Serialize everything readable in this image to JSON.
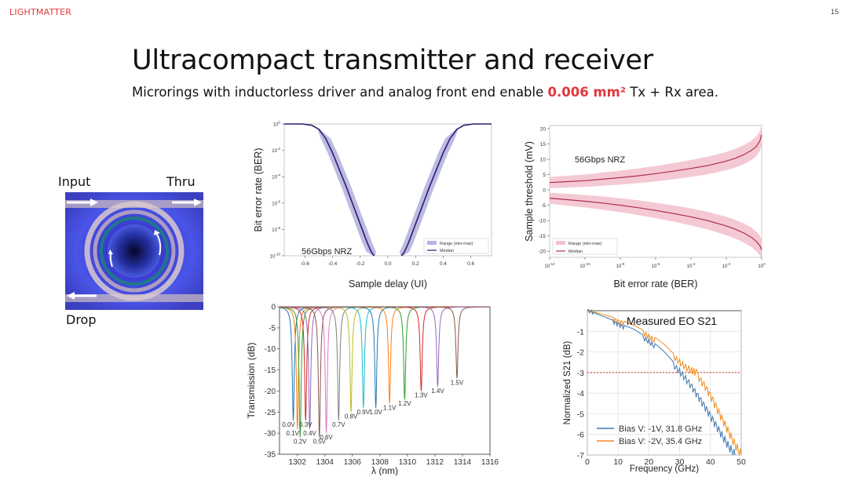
{
  "header": {
    "logo_text": "LIGHTMATTER",
    "page_number": "15"
  },
  "title": "Ultracompact transmitter and receiver",
  "subtitle": {
    "before": "Microrings with inductorless driver and analog front end enable ",
    "highlight": "0.006 mm²",
    "after": " Tx + Rx area."
  },
  "microring": {
    "input_label": "Input",
    "thru_label": "Thru",
    "drop_label": "Drop"
  },
  "colors": {
    "accent": "#e2363c",
    "ber_fill": "#b7b2e0",
    "ber_line": "#23236e",
    "thr_fill": "#f3c3cf",
    "thr_line": "#b03050",
    "eo_orange": "#f08a1c",
    "eo_blue": "#3d77b0"
  },
  "chart_data": [
    {
      "id": "ber_bathtub",
      "type": "line",
      "xlabel": "Sample delay (UI)",
      "ylabel": "Bit error rate (BER)",
      "x_ticks": [
        "-0.6",
        "-0.4",
        "-0.2",
        "0.0",
        "0.2",
        "0.4",
        "0.6"
      ],
      "y_ticks": [
        "10^0",
        "10^-2",
        "10^-4",
        "10^-6",
        "10^-8",
        "10^-10"
      ],
      "xlim": [
        -0.75,
        0.75
      ],
      "ylim_log10": [
        -10,
        0
      ],
      "annotation": "56Gbps NRZ",
      "legend": [
        "Range (min-max)",
        "Median"
      ],
      "legend_position": "bottom-right",
      "median": {
        "x": [
          -0.75,
          -0.62,
          -0.55,
          -0.5,
          -0.45,
          -0.4,
          -0.35,
          -0.3,
          -0.25,
          -0.2,
          -0.15,
          -0.12,
          -0.1,
          0.1,
          0.12,
          0.15,
          0.2,
          0.25,
          0.3,
          0.35,
          0.4,
          0.45,
          0.5,
          0.55,
          0.62,
          0.75
        ],
        "log10_ber": [
          0,
          0,
          -0.1,
          -0.4,
          -1.1,
          -2.2,
          -3.5,
          -4.8,
          -6.2,
          -7.6,
          -9.0,
          -9.7,
          -10,
          -10,
          -9.7,
          -9.0,
          -7.6,
          -6.2,
          -4.8,
          -3.5,
          -2.2,
          -1.1,
          -0.4,
          -0.1,
          0,
          0
        ]
      }
    },
    {
      "id": "threshold",
      "type": "line",
      "xlabel": "Bit error rate (BER)",
      "ylabel": "Sample threshold (mV)",
      "x_ticks": [
        "10^-12",
        "10^-10",
        "10^-8",
        "10^-6",
        "10^-4",
        "10^-2",
        "10^0"
      ],
      "y_ticks": [
        "20",
        "15",
        "10",
        "5",
        "0",
        "-5",
        "-10",
        "-15",
        "-20"
      ],
      "ylim": [
        -22,
        21
      ],
      "annotation": "56Gbps NRZ",
      "legend": [
        "Range (min-max)",
        "Median"
      ],
      "legend_position": "bottom-left",
      "upper_median": {
        "log10_ber": [
          -12,
          -11,
          -10,
          -9,
          -8,
          -7,
          -6,
          -5,
          -4,
          -3,
          -2,
          -1.5,
          -1,
          -0.6,
          -0.3,
          -0.1,
          0
        ],
        "mV": [
          2.4,
          2.7,
          3.0,
          3.5,
          4.0,
          4.6,
          5.3,
          6.1,
          7.0,
          8.0,
          9.4,
          10.3,
          11.5,
          12.8,
          14.2,
          16.0,
          18.0
        ]
      },
      "lower_median": {
        "log10_ber": [
          -12,
          -11,
          -10,
          -9,
          -8,
          -7,
          -6,
          -5,
          -4,
          -3,
          -2,
          -1.5,
          -1,
          -0.6,
          -0.3,
          -0.1,
          0
        ],
        "mV": [
          -2.7,
          -3.2,
          -3.7,
          -4.3,
          -5.0,
          -5.8,
          -6.7,
          -7.7,
          -8.8,
          -10.1,
          -11.8,
          -12.8,
          -14.1,
          -15.4,
          -16.8,
          -18.2,
          -19.5
        ]
      }
    },
    {
      "id": "transmission",
      "type": "line",
      "xlabel": "λ (nm)",
      "ylabel": "Transmission (dB)",
      "x_ticks": [
        "1302",
        "1304",
        "1306",
        "1308",
        "1310",
        "1312",
        "1314",
        "1316"
      ],
      "y_ticks": [
        "0",
        "-5",
        "-10",
        "-15",
        "-20",
        "-25",
        "-30",
        "-35"
      ],
      "xlim": [
        1300.7,
        1316
      ],
      "ylim": [
        -35,
        0
      ],
      "series": [
        {
          "name": "0.0V",
          "center": 1301.7,
          "depth": -27,
          "color": "#1f77b4"
        },
        {
          "name": "0.1V",
          "center": 1302.0,
          "depth": -29,
          "color": "#ff7f0e"
        },
        {
          "name": "0.2V",
          "center": 1302.2,
          "depth": -31,
          "color": "#2ca02c"
        },
        {
          "name": "0.3V",
          "center": 1302.6,
          "depth": -27,
          "color": "#d62728"
        },
        {
          "name": "0.4V",
          "center": 1302.9,
          "depth": -29,
          "color": "#9467bd"
        },
        {
          "name": "0.5V",
          "center": 1303.6,
          "depth": -31,
          "color": "#8c564b"
        },
        {
          "name": "0.6V",
          "center": 1304.1,
          "depth": -30,
          "color": "#e377c2"
        },
        {
          "name": "0.7V",
          "center": 1305.0,
          "depth": -27,
          "color": "#7f7f7f"
        },
        {
          "name": "0.8V",
          "center": 1305.9,
          "depth": -25,
          "color": "#bcbd22"
        },
        {
          "name": "0.9V",
          "center": 1306.8,
          "depth": -24,
          "color": "#17becf"
        },
        {
          "name": "1.0V",
          "center": 1307.7,
          "depth": -24,
          "color": "#1f77b4"
        },
        {
          "name": "1.1V",
          "center": 1308.7,
          "depth": -23,
          "color": "#ff7f0e"
        },
        {
          "name": "1.2V",
          "center": 1309.8,
          "depth": -22,
          "color": "#2ca02c"
        },
        {
          "name": "1.3V",
          "center": 1311.0,
          "depth": -20,
          "color": "#d62728"
        },
        {
          "name": "1.4V",
          "center": 1312.2,
          "depth": -19,
          "color": "#9467bd"
        },
        {
          "name": "1.5V",
          "center": 1313.6,
          "depth": -17,
          "color": "#8c564b"
        }
      ]
    },
    {
      "id": "eo_s21",
      "type": "line",
      "title": "Measured EO S21",
      "xlabel": "Frequency (GHz)",
      "ylabel": "Normalized S21 (dB)",
      "x_ticks": [
        "0",
        "10",
        "20",
        "30",
        "40",
        "50"
      ],
      "y_ticks": [
        "-1",
        "-2",
        "-3",
        "-4",
        "-5",
        "-6",
        "-7"
      ],
      "xlim": [
        0,
        50
      ],
      "ylim": [
        -7,
        0
      ],
      "reference_line_db": -3,
      "grid": true,
      "legend_position": "bottom-left",
      "series": [
        {
          "name": "Bias V: -1V, 31.8 GHz",
          "color": "#3d77b0",
          "x": [
            0,
            2,
            5,
            8,
            10,
            12,
            15,
            18,
            20,
            22,
            25,
            28,
            30,
            32,
            34,
            36,
            38,
            40,
            42,
            44,
            46,
            48
          ],
          "y": [
            0,
            -0.1,
            -0.3,
            -0.5,
            -0.65,
            -0.8,
            -1.0,
            -1.3,
            -1.5,
            -1.75,
            -2.15,
            -2.65,
            -2.95,
            -3.3,
            -3.7,
            -4.15,
            -4.6,
            -5.1,
            -5.6,
            -6.1,
            -6.6,
            -7.0
          ]
        },
        {
          "name": "Bias V: -2V, 35.4 GHz",
          "color": "#f08a1c",
          "x": [
            0,
            2,
            5,
            8,
            10,
            12,
            15,
            18,
            20,
            22,
            25,
            28,
            30,
            32,
            34,
            35.4,
            36,
            38,
            40,
            42,
            44,
            46,
            48,
            50
          ],
          "y": [
            0,
            -0.05,
            -0.2,
            -0.35,
            -0.5,
            -0.6,
            -0.8,
            -1.05,
            -1.25,
            -1.45,
            -1.8,
            -2.25,
            -2.5,
            -2.75,
            -2.9,
            -3.0,
            -3.2,
            -3.6,
            -4.1,
            -4.7,
            -5.3,
            -5.9,
            -6.5,
            -7.0
          ]
        }
      ]
    }
  ]
}
